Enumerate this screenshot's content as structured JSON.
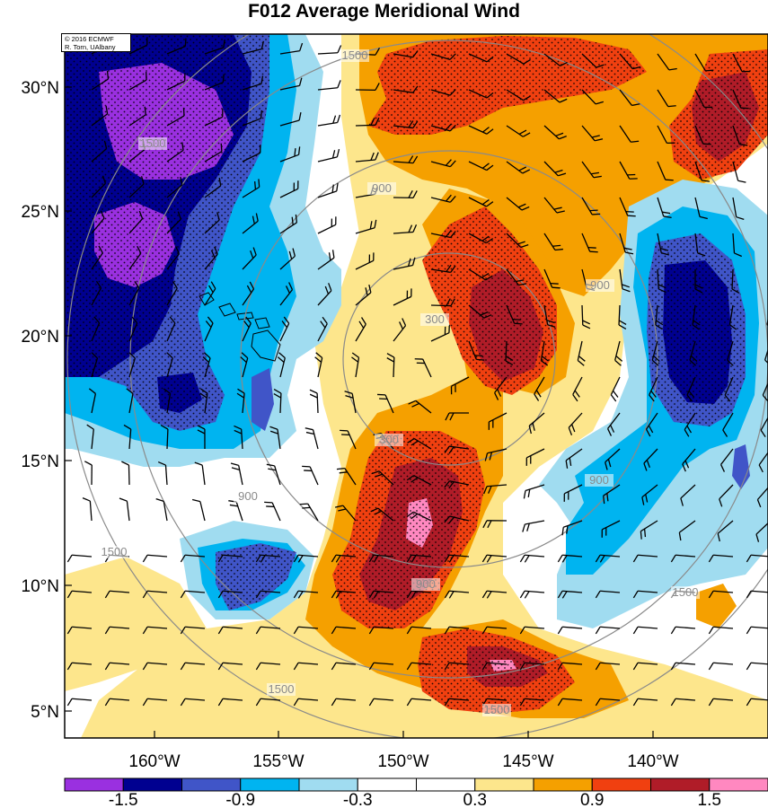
{
  "title": "F012 Average Meridional Wind",
  "credit": {
    "line1": "© 2016 ECMWF",
    "line2": "R. Torn, UAlbany"
  },
  "map": {
    "lat_ticks": [
      "30°N",
      "25°N",
      "20°N",
      "15°N",
      "10°N",
      "5°N"
    ],
    "lon_ticks": [
      "160°W",
      "155°W",
      "150°W",
      "145°W",
      "140°W"
    ],
    "contour_labels": [
      "1500",
      "1500",
      "900",
      "900",
      "300",
      "300",
      "900",
      "900",
      "900",
      "1500",
      "1500",
      "1500",
      "1500"
    ],
    "storm_center": {
      "lat": 19.0,
      "lon": -149.5
    }
  },
  "colorbar": {
    "labels": [
      "-1.5",
      "-0.9",
      "-0.3",
      "0.3",
      "0.9",
      "1.5"
    ],
    "colors": [
      "#9a30e0",
      "#000090",
      "#4055c8",
      "#00b4f0",
      "#a0dcf0",
      "#ffffff",
      "#ffffff",
      "#fde68c",
      "#f5a000",
      "#f04010",
      "#b01c28",
      "#ff88c0"
    ]
  },
  "palette": {
    "purple": "#9a30e0",
    "navy": "#000090",
    "blue": "#4055c8",
    "cyan": "#00b4f0",
    "lightblue": "#a0dcf0",
    "lightyellow": "#fde68c",
    "orange": "#f5a000",
    "redorange": "#f04010",
    "darkred": "#b01c28",
    "pink": "#ff88c0",
    "contour": "#8a8a8a"
  }
}
